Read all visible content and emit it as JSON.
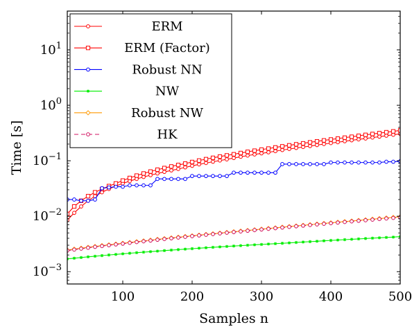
{
  "chart_data": {
    "type": "line",
    "xlabel": "Samples n",
    "ylabel": "Time [s]",
    "xlim": [
      20,
      500
    ],
    "ylim": [
      0.0006,
      50
    ],
    "yscale": "log",
    "grid": false,
    "legend_position": "top-left",
    "x_ticks": [
      {
        "value": 100,
        "label": "100"
      },
      {
        "value": 200,
        "label": "200"
      },
      {
        "value": 300,
        "label": "300"
      },
      {
        "value": 400,
        "label": "400"
      },
      {
        "value": 500,
        "label": "500"
      }
    ],
    "y_ticks": [
      {
        "value": 0.001,
        "base": "10",
        "exp": "−3"
      },
      {
        "value": 0.01,
        "base": "10",
        "exp": "−2"
      },
      {
        "value": 0.1,
        "base": "10",
        "exp": "−1"
      },
      {
        "value": 1,
        "base": "10",
        "exp": "0"
      },
      {
        "value": 10,
        "base": "10",
        "exp": "1"
      }
    ],
    "x": [
      20,
      30,
      40,
      50,
      60,
      70,
      80,
      90,
      100,
      110,
      120,
      130,
      140,
      150,
      160,
      170,
      180,
      190,
      200,
      210,
      220,
      230,
      240,
      250,
      260,
      270,
      280,
      290,
      300,
      310,
      320,
      330,
      340,
      350,
      360,
      370,
      380,
      390,
      400,
      410,
      420,
      430,
      440,
      450,
      460,
      470,
      480,
      490,
      500
    ],
    "series": [
      {
        "name": "ERM",
        "color": "#ff0000",
        "marker": "circle",
        "dash": "",
        "values": [
          0.0085,
          0.0115,
          0.015,
          0.019,
          0.023,
          0.027,
          0.031,
          0.035,
          0.039,
          0.043,
          0.047,
          0.051,
          0.055,
          0.059,
          0.063,
          0.067,
          0.071,
          0.076,
          0.081,
          0.086,
          0.091,
          0.096,
          0.101,
          0.106,
          0.112,
          0.118,
          0.124,
          0.13,
          0.136,
          0.142,
          0.149,
          0.156,
          0.163,
          0.17,
          0.177,
          0.184,
          0.192,
          0.2,
          0.208,
          0.216,
          0.225,
          0.234,
          0.243,
          0.252,
          0.262,
          0.272,
          0.283,
          0.294,
          0.305
        ]
      },
      {
        "name": "ERM (Factor)",
        "color": "#ff0000",
        "marker": "square",
        "dash": "",
        "values": [
          0.011,
          0.015,
          0.019,
          0.023,
          0.027,
          0.031,
          0.035,
          0.039,
          0.044,
          0.049,
          0.054,
          0.059,
          0.064,
          0.069,
          0.074,
          0.079,
          0.084,
          0.089,
          0.095,
          0.101,
          0.107,
          0.113,
          0.119,
          0.125,
          0.131,
          0.138,
          0.145,
          0.152,
          0.159,
          0.166,
          0.174,
          0.182,
          0.19,
          0.198,
          0.206,
          0.215,
          0.224,
          0.233,
          0.242,
          0.251,
          0.261,
          0.271,
          0.282,
          0.293,
          0.304,
          0.315,
          0.327,
          0.339,
          0.352
        ]
      },
      {
        "name": "Robust NN",
        "color": "#0000ff",
        "marker": "circle",
        "dash": "",
        "values": [
          0.02,
          0.02,
          0.019,
          0.019,
          0.02,
          0.032,
          0.033,
          0.034,
          0.034,
          0.036,
          0.036,
          0.036,
          0.036,
          0.047,
          0.047,
          0.047,
          0.047,
          0.047,
          0.053,
          0.053,
          0.053,
          0.053,
          0.053,
          0.053,
          0.061,
          0.061,
          0.061,
          0.061,
          0.061,
          0.061,
          0.061,
          0.087,
          0.087,
          0.087,
          0.087,
          0.087,
          0.087,
          0.087,
          0.093,
          0.093,
          0.093,
          0.093,
          0.093,
          0.093,
          0.093,
          0.093,
          0.096,
          0.096,
          0.098
        ]
      },
      {
        "name": "NW",
        "color": "#00ee00",
        "marker": "star",
        "dash": "",
        "values": [
          0.0017,
          0.00175,
          0.0018,
          0.00185,
          0.0019,
          0.00195,
          0.002,
          0.00205,
          0.0021,
          0.00215,
          0.0022,
          0.00225,
          0.0023,
          0.00235,
          0.0024,
          0.00245,
          0.0025,
          0.00255,
          0.0026,
          0.00265,
          0.0027,
          0.00275,
          0.0028,
          0.00285,
          0.0029,
          0.00295,
          0.003,
          0.00305,
          0.0031,
          0.00315,
          0.0032,
          0.00325,
          0.0033,
          0.00336,
          0.00342,
          0.00348,
          0.00354,
          0.0036,
          0.00366,
          0.00372,
          0.00378,
          0.00384,
          0.0039,
          0.00396,
          0.00402,
          0.00408,
          0.00414,
          0.0042,
          0.0043
        ]
      },
      {
        "name": "Robust NW",
        "color": "#ff9900",
        "marker": "diamond",
        "dash": "",
        "values": [
          0.00245,
          0.00255,
          0.00265,
          0.00275,
          0.00285,
          0.00295,
          0.00305,
          0.00315,
          0.00325,
          0.00336,
          0.00347,
          0.00358,
          0.0037,
          0.00382,
          0.00394,
          0.00406,
          0.00418,
          0.0043,
          0.00443,
          0.00456,
          0.00469,
          0.00482,
          0.00496,
          0.0051,
          0.00524,
          0.00539,
          0.00554,
          0.00569,
          0.00585,
          0.00601,
          0.00617,
          0.00634,
          0.00651,
          0.00668,
          0.00686,
          0.00704,
          0.00722,
          0.00741,
          0.0076,
          0.0078,
          0.008,
          0.0082,
          0.00841,
          0.00862,
          0.00884,
          0.00906,
          0.00929,
          0.00952,
          0.00975
        ]
      },
      {
        "name": "HK",
        "color": "#d01060",
        "marker": "circle",
        "dash": "6 4",
        "values": [
          0.0024,
          0.0025,
          0.0026,
          0.0027,
          0.0028,
          0.0029,
          0.003,
          0.0031,
          0.0032,
          0.00331,
          0.00342,
          0.00353,
          0.00364,
          0.00376,
          0.00388,
          0.004,
          0.00412,
          0.00424,
          0.00437,
          0.0045,
          0.00463,
          0.00476,
          0.0049,
          0.00504,
          0.00518,
          0.00532,
          0.00547,
          0.00562,
          0.00577,
          0.00593,
          0.00609,
          0.00625,
          0.00642,
          0.00659,
          0.00676,
          0.00694,
          0.00712,
          0.0073,
          0.00749,
          0.00768,
          0.00787,
          0.00807,
          0.00827,
          0.00847,
          0.00868,
          0.00889,
          0.0091,
          0.00932,
          0.00955
        ]
      }
    ]
  }
}
